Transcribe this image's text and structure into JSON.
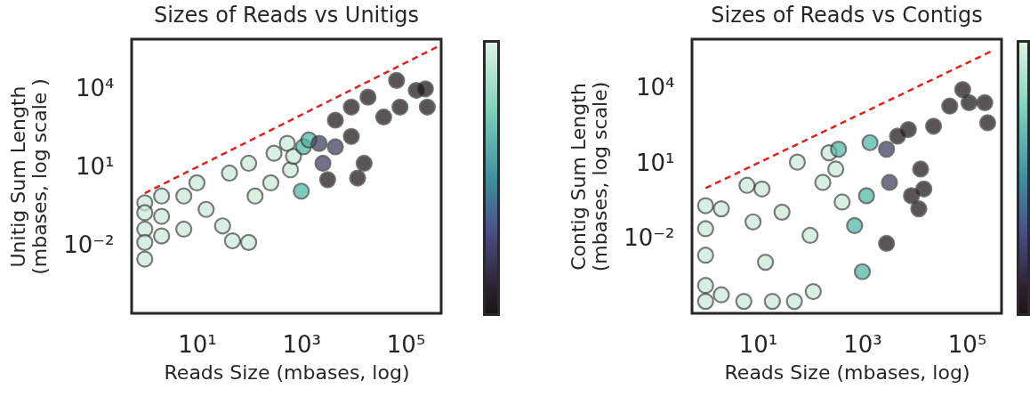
{
  "chart_data": [
    {
      "type": "scatter",
      "title": "Sizes of Reads vs Unitigs",
      "xlabel": "Reads Size (mbases, log)",
      "ylabel": "Unitig Sum Length\n(mbases, log scale )",
      "log": "xy",
      "grid": false,
      "marker": "circle",
      "xlim": [
        0.56,
        480000
      ],
      "ylim": [
        2.5e-05,
        800000
      ],
      "xticks": [
        {
          "value": 10,
          "label": "10¹"
        },
        {
          "value": 1000,
          "label": "10³"
        },
        {
          "value": 100000,
          "label": "10⁵"
        }
      ],
      "yticks": [
        {
          "value": 0.01,
          "label": "10⁻²"
        },
        {
          "value": 10,
          "label": "10¹"
        },
        {
          "value": 10000,
          "label": "10⁴"
        }
      ],
      "series": [
        {
          "color": "#cdeada",
          "x": [
            1.0,
            1.0,
            1.0,
            1.0,
            1.0,
            2.1,
            2.1,
            2.1,
            5.6,
            5.6,
            10,
            15,
            31,
            48,
            98,
            42,
            98,
            130,
            300,
            260,
            540,
            620,
            710
          ],
          "values": [
            0.43,
            0.18,
            0.042,
            0.013,
            0.003,
            0.78,
            0.13,
            0.023,
            0.042,
            0.78,
            2.5,
            0.24,
            0.056,
            0.015,
            0.013,
            5.9,
            14,
            0.78,
            34,
            2.5,
            81,
            7.9,
            26
          ]
        },
        {
          "color": "#4fb5a5",
          "x": [
            1000,
            1100,
            1400
          ],
          "values": [
            1.2,
            60,
            110
          ]
        },
        {
          "color": "#3e3a5e",
          "x": [
            2200,
            2600,
            4500
          ],
          "values": [
            81,
            14,
            60
          ]
        },
        {
          "color": "#1a1416",
          "x": [
            3200,
            4500,
            9100,
            12000,
            16000,
            19000,
            38000,
            67000,
            78000,
            160000,
            240000,
            260000,
            9100
          ],
          "values": [
            3.3,
            630,
            150,
            3.8,
            14,
            4800,
            830,
            21000,
            2000,
            8700,
            10000,
            2000,
            2000
          ]
        },
        {
          "type": "line",
          "line_style": "dashed",
          "marker": "none",
          "color": "#e3221c",
          "x": [
            1,
            400000
          ],
          "values": [
            1,
            400000
          ]
        }
      ]
    },
    {
      "type": "scatter",
      "title": "Sizes of Reads vs Contigs",
      "xlabel": "Reads Size (mbases, log)",
      "ylabel": "Contig Sum Length\n(mbases, log scale)",
      "log": "xy",
      "grid": false,
      "marker": "circle",
      "xlim": [
        0.55,
        460000
      ],
      "ylim": [
        1e-05,
        900000
      ],
      "xticks": [
        {
          "value": 10,
          "label": "10¹"
        },
        {
          "value": 1000,
          "label": "10³"
        },
        {
          "value": 100000,
          "label": "10⁵"
        }
      ],
      "yticks": [
        {
          "value": 0.01,
          "label": "10⁻²"
        },
        {
          "value": 10,
          "label": "10¹"
        },
        {
          "value": 10000,
          "label": "10⁴"
        }
      ],
      "series": [
        {
          "color": "#cdeada",
          "x": [
            1.0,
            1.0,
            1.0,
            1.0,
            1.0,
            2.0,
            2.0,
            5.4,
            6.2,
            8.1,
            12,
            14,
            19,
            29,
            50,
            57,
            115,
            100,
            175,
            230,
            410,
            310
          ],
          "values": [
            0.2,
            0.024,
            0.0021,
            0.00013,
            3e-05,
            0.15,
            5.5e-05,
            3e-05,
            1.3,
            0.045,
            0.93,
            0.0011,
            3e-05,
            0.11,
            3e-05,
            11,
            7.4e-05,
            0.013,
            1.7,
            26,
            0.28,
            5.8
          ]
        },
        {
          "color": "#4fb5a5",
          "x": [
            710,
            1000,
            350,
            1200,
            1400
          ],
          "values": [
            0.032,
            0.00046,
            36,
            0.5,
            66
          ]
        },
        {
          "color": "#3e3a5e",
          "x": [
            2900,
            3300
          ],
          "values": [
            36,
            1.7
          ]
        },
        {
          "color": "#1a1416",
          "x": [
            2900,
            12000,
            15000,
            8700,
            13000,
            7600,
            23000,
            47000,
            83000,
            110000,
            220000,
            250000,
            4700
          ],
          "values": [
            0.0062,
            0.15,
            0.93,
            0.5,
            5.8,
            220,
            300,
            1900,
            8700,
            2600,
            2600,
            410,
            120
          ]
        },
        {
          "type": "line",
          "line_style": "dashed",
          "marker": "none",
          "color": "#e3221c",
          "x": [
            1,
            300000
          ],
          "values": [
            1,
            300000
          ]
        }
      ]
    }
  ]
}
